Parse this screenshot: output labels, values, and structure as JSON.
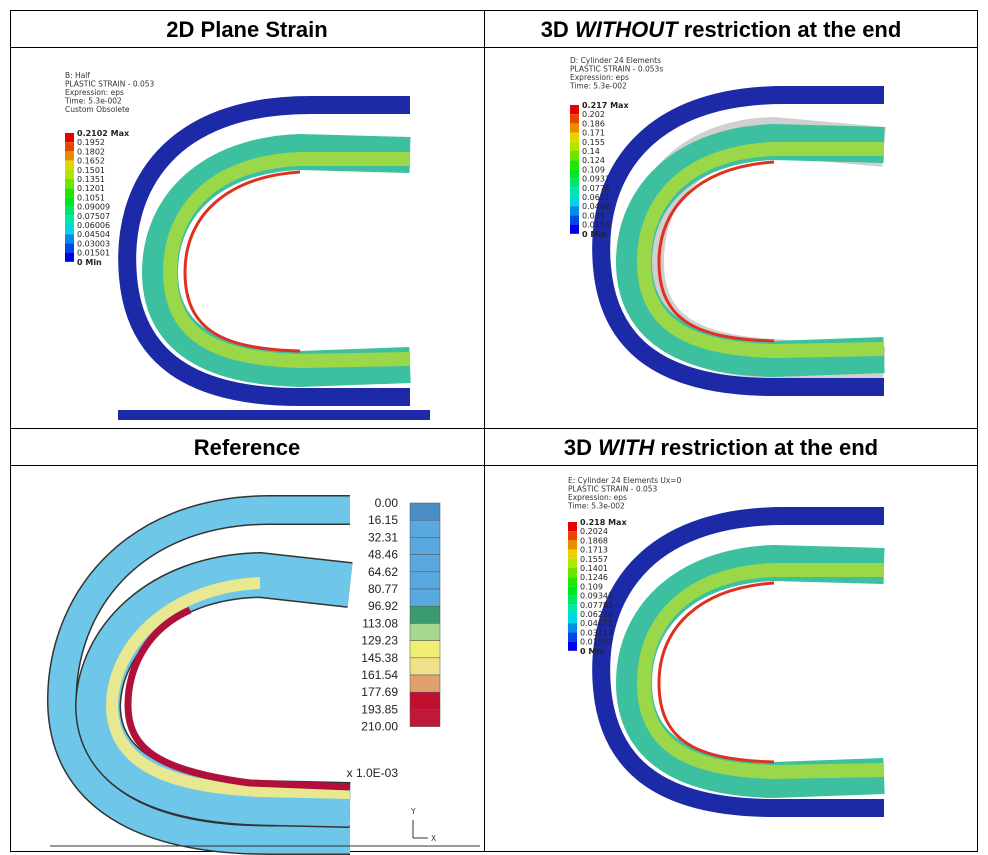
{
  "panels": [
    {
      "title": {
        "pre": "2D Plane Strain"
      },
      "info": [
        "B: Half",
        "PLASTIC STRAIN - 0.053",
        "Expression: eps",
        "Time: 5.3e-002",
        "Custom Obsolete"
      ],
      "legend": [
        "0.2102 Max",
        "0.1952",
        "0.1802",
        "0.1652",
        "0.1501",
        "0.1351",
        "0.1201",
        "0.1051",
        "0.09009",
        "0.07507",
        "0.06006",
        "0.04504",
        "0.03003",
        "0.01501",
        "0 Min"
      ]
    },
    {
      "title": {
        "pre": "3D ",
        "em": "WITHOUT",
        "post": " restriction at the end"
      },
      "info": [
        "D: Cylinder 24 Elements",
        "PLASTIC STRAIN - 0.053s",
        "Expression: eps",
        "Time: 5.3e-002"
      ],
      "legend": [
        "0.217 Max",
        "0.202",
        "0.186",
        "0.171",
        "0.155",
        "0.14",
        "0.124",
        "0.109",
        "0.0931",
        "0.0776",
        "0.0621",
        "0.0466",
        "0.031",
        "0.0155",
        "0 Min"
      ]
    },
    {
      "title": {
        "pre": "Reference"
      },
      "legend": [
        "0.00",
        "16.15",
        "32.31",
        "48.46",
        "64.62",
        "80.77",
        "96.92",
        "113.08",
        "129.23",
        "145.38",
        "161.54",
        "177.69",
        "193.85",
        "210.00"
      ],
      "scale_note": "x 1.0E-03",
      "axes": [
        "Y",
        "X"
      ]
    },
    {
      "title": {
        "pre": "3D ",
        "em": "WITH",
        "post": " restriction at the end"
      },
      "info": [
        "E: Cylinder 24 Elements Ux=0",
        "PLASTIC STRAIN - 0.053",
        "Expression: eps",
        "Time: 5.3e-002"
      ],
      "legend": [
        "0.218 Max",
        "0.2024",
        "0.1868",
        "0.1713",
        "0.1557",
        "0.1401",
        "0.1246",
        "0.109",
        "0.09342",
        "0.07785",
        "0.06228",
        "0.04671",
        "0.03114",
        "0.01557",
        "0 Min"
      ]
    }
  ]
}
